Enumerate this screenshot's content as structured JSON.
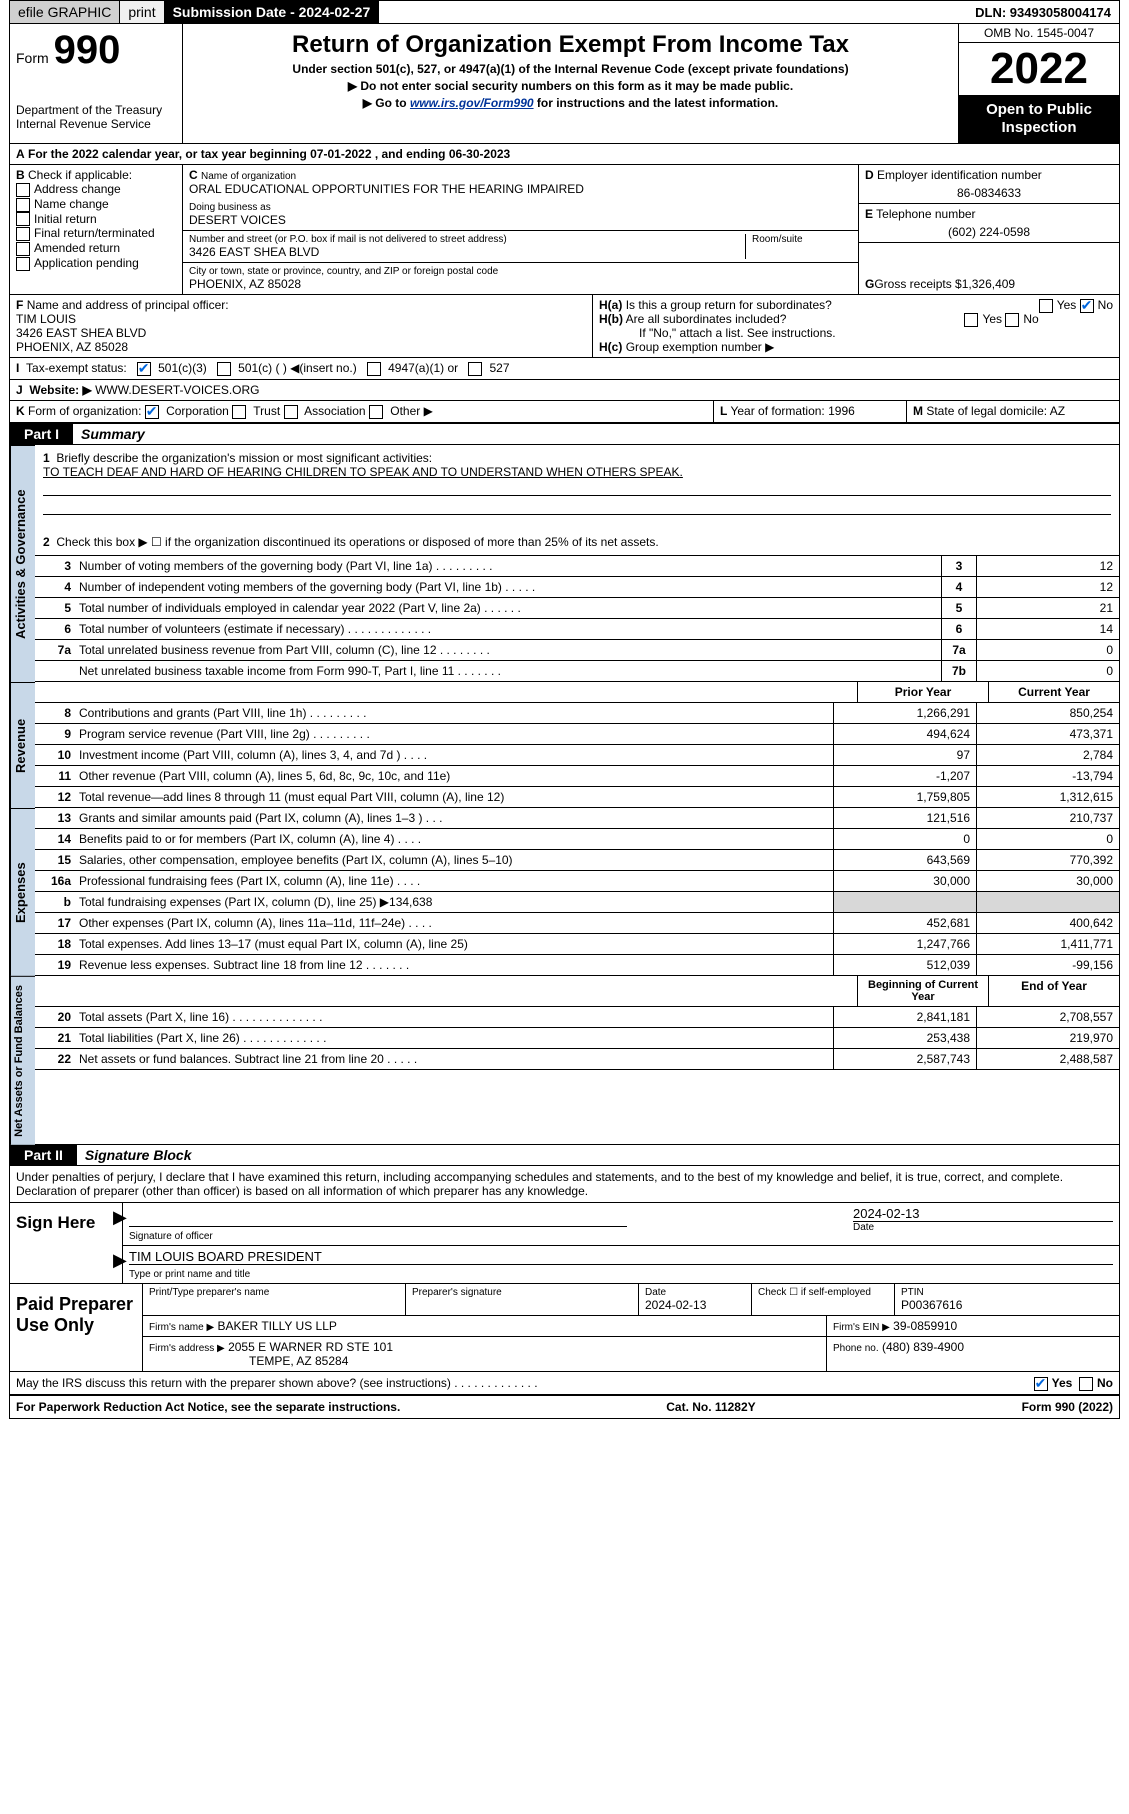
{
  "topbar": {
    "efile": "efile GRAPHIC",
    "print": "print",
    "sub_label": "Submission Date - 2024-02-27",
    "dln": "DLN: 93493058004174"
  },
  "header": {
    "form_label": "Form",
    "form_num": "990",
    "dept1": "Department of the Treasury",
    "dept2": "Internal Revenue Service",
    "title": "Return of Organization Exempt From Income Tax",
    "sub1": "Under section 501(c), 527, or 4947(a)(1) of the Internal Revenue Code (except private foundations)",
    "instr1": "Do not enter social security numbers on this form as it may be made public.",
    "instr2_pre": "Go to ",
    "instr2_link": "www.irs.gov/Form990",
    "instr2_post": " for instructions and the latest information.",
    "omb": "OMB No. 1545-0047",
    "year": "2022",
    "inspect": "Open to Public Inspection"
  },
  "section_a": {
    "line": "For the 2022 calendar year, or tax year beginning 07-01-2022    , and ending 06-30-2023"
  },
  "section_b": {
    "title": "Check if applicable:",
    "opts": [
      "Address change",
      "Name change",
      "Initial return",
      "Final return/terminated",
      "Amended return",
      "Application pending"
    ]
  },
  "section_c": {
    "name_label": "Name of organization",
    "name": "ORAL EDUCATIONAL OPPORTUNITIES FOR THE HEARING IMPAIRED",
    "dba_label": "Doing business as",
    "dba": "DESERT VOICES",
    "addr_label": "Number and street (or P.O. box if mail is not delivered to street address)",
    "room_label": "Room/suite",
    "addr": "3426 EAST SHEA BLVD",
    "city_label": "City or town, state or province, country, and ZIP or foreign postal code",
    "city": "PHOENIX, AZ  85028"
  },
  "section_d": {
    "label": "Employer identification number",
    "ein": "86-0834633"
  },
  "section_e": {
    "label": "Telephone number",
    "phone": "(602) 224-0598"
  },
  "section_g": {
    "label": "Gross receipts $",
    "amount": "1,326,409"
  },
  "section_f": {
    "label": "Name and address of principal officer:",
    "name": "TIM LOUIS",
    "addr1": "3426 EAST SHEA BLVD",
    "addr2": "PHOENIX, AZ  85028"
  },
  "section_h": {
    "a": "Is this a group return for subordinates?",
    "b": "Are all subordinates included?",
    "b_note": "If \"No,\" attach a list. See instructions.",
    "c": "Group exemption number ▶"
  },
  "section_i": {
    "label": "Tax-exempt status:",
    "opt1": "501(c)(3)",
    "opt2": "501(c) (  ) ◀(insert no.)",
    "opt3": "4947(a)(1) or",
    "opt4": "527"
  },
  "section_j": {
    "label": "Website: ▶",
    "url": "WWW.DESERT-VOICES.ORG"
  },
  "section_k": {
    "label": "Form of organization:",
    "opts": [
      "Corporation",
      "Trust",
      "Association",
      "Other ▶"
    ]
  },
  "section_l": {
    "label": "Year of formation:",
    "year": "1996"
  },
  "section_m": {
    "label": "State of legal domicile:",
    "state": "AZ"
  },
  "part1": {
    "label": "Part I",
    "title": "Summary",
    "line1_label": "Briefly describe the organization's mission or most significant activities:",
    "line1_text": "TO TEACH DEAF AND HARD OF HEARING CHILDREN TO SPEAK AND TO UNDERSTAND WHEN OTHERS SPEAK.",
    "line2": "Check this box ▶ ☐  if the organization discontinued its operations or disposed of more than 25% of its net assets.",
    "vlabels": {
      "gov": "Activities & Governance",
      "rev": "Revenue",
      "exp": "Expenses",
      "net": "Net Assets or Fund Balances"
    },
    "gov_lines": [
      {
        "num": "3",
        "desc": "Number of voting members of the governing body (Part VI, line 1a)   .    .    .    .    .    .    .    .    .",
        "box": "3",
        "val": "12"
      },
      {
        "num": "4",
        "desc": "Number of independent voting members of the governing body (Part VI, line 1b)   .    .    .    .    .",
        "box": "4",
        "val": "12"
      },
      {
        "num": "5",
        "desc": "Total number of individuals employed in calendar year 2022 (Part V, line 2a)   .    .    .    .    .    .",
        "box": "5",
        "val": "21"
      },
      {
        "num": "6",
        "desc": "Total number of volunteers (estimate if necessary)   .    .    .    .    .    .    .    .    .    .    .    .    .",
        "box": "6",
        "val": "14"
      },
      {
        "num": "7a",
        "desc": "Total unrelated business revenue from Part VIII, column (C), line 12   .    .    .    .    .    .    .    .",
        "box": "7a",
        "val": "0"
      },
      {
        "num": "",
        "desc": "Net unrelated business taxable income from Form 990-T, Part I, line 11   .    .    .    .    .    .    .",
        "box": "7b",
        "val": "0"
      }
    ],
    "col_hdr_prior": "Prior Year",
    "col_hdr_curr": "Current Year",
    "rev_lines": [
      {
        "num": "8",
        "desc": "Contributions and grants (Part VIII, line 1h)   .    .    .    .    .    .    .    .    .",
        "prior": "1,266,291",
        "curr": "850,254"
      },
      {
        "num": "9",
        "desc": "Program service revenue (Part VIII, line 2g)   .    .    .    .    .    .    .    .    .",
        "prior": "494,624",
        "curr": "473,371"
      },
      {
        "num": "10",
        "desc": "Investment income (Part VIII, column (A), lines 3, 4, and 7d )   .    .    .    .",
        "prior": "97",
        "curr": "2,784"
      },
      {
        "num": "11",
        "desc": "Other revenue (Part VIII, column (A), lines 5, 6d, 8c, 9c, 10c, and 11e)",
        "prior": "-1,207",
        "curr": "-13,794"
      },
      {
        "num": "12",
        "desc": "Total revenue—add lines 8 through 11 (must equal Part VIII, column (A), line 12)",
        "prior": "1,759,805",
        "curr": "1,312,615"
      }
    ],
    "exp_lines": [
      {
        "num": "13",
        "desc": "Grants and similar amounts paid (Part IX, column (A), lines 1–3 )   .    .    .",
        "prior": "121,516",
        "curr": "210,737"
      },
      {
        "num": "14",
        "desc": "Benefits paid to or for members (Part IX, column (A), line 4)   .    .    .    .",
        "prior": "0",
        "curr": "0"
      },
      {
        "num": "15",
        "desc": "Salaries, other compensation, employee benefits (Part IX, column (A), lines 5–10)",
        "prior": "643,569",
        "curr": "770,392"
      },
      {
        "num": "16a",
        "desc": "Professional fundraising fees (Part IX, column (A), line 11e)   .    .    .    .",
        "prior": "30,000",
        "curr": "30,000"
      },
      {
        "num": "b",
        "desc": "Total fundraising expenses (Part IX, column (D), line 25) ▶134,638",
        "prior": "",
        "curr": "",
        "gray": true
      },
      {
        "num": "17",
        "desc": "Other expenses (Part IX, column (A), lines 11a–11d, 11f–24e)   .    .    .    .",
        "prior": "452,681",
        "curr": "400,642"
      },
      {
        "num": "18",
        "desc": "Total expenses. Add lines 13–17 (must equal Part IX, column (A), line 25)",
        "prior": "1,247,766",
        "curr": "1,411,771"
      },
      {
        "num": "19",
        "desc": "Revenue less expenses. Subtract line 18 from line 12   .    .    .    .    .    .    .",
        "prior": "512,039",
        "curr": "-99,156"
      }
    ],
    "net_hdr_begin": "Beginning of Current Year",
    "net_hdr_end": "End of Year",
    "net_lines": [
      {
        "num": "20",
        "desc": "Total assets (Part X, line 16)   .    .    .    .    .    .    .    .    .    .    .    .    .    .",
        "prior": "2,841,181",
        "curr": "2,708,557"
      },
      {
        "num": "21",
        "desc": "Total liabilities (Part X, line 26)   .    .    .    .    .    .    .    .    .    .    .    .    .",
        "prior": "253,438",
        "curr": "219,970"
      },
      {
        "num": "22",
        "desc": "Net assets or fund balances. Subtract line 21 from line 20   .    .    .    .    .",
        "prior": "2,587,743",
        "curr": "2,488,587"
      }
    ]
  },
  "part2": {
    "label": "Part II",
    "title": "Signature Block",
    "declaration": "Under penalties of perjury, I declare that I have examined this return, including accompanying schedules and statements, and to the best of my knowledge and belief, it is true, correct, and complete. Declaration of preparer (other than officer) is based on all information of which preparer has any knowledge.",
    "sign_here": "Sign Here",
    "sig_of_officer": "Signature of officer",
    "date_label": "Date",
    "sig_date": "2024-02-13",
    "officer_name": "TIM LOUIS  BOARD PRESIDENT",
    "officer_type_label": "Type or print name and title",
    "paid_label": "Paid Preparer Use Only",
    "prep_name_label": "Print/Type preparer's name",
    "prep_sig_label": "Preparer's signature",
    "prep_date_label0": "Date",
    "prep_date": "2024-02-13",
    "check_if": "Check ☐  if self-employed",
    "ptin_label": "PTIN",
    "ptin": "P00367616",
    "firm_name_label": "Firm's name     ▶",
    "firm_name": "BAKER TILLY US LLP",
    "firm_ein_label": "Firm's EIN ▶",
    "firm_ein": "39-0859910",
    "firm_addr_label": "Firm's address ▶",
    "firm_addr1": "2055 E WARNER RD STE 101",
    "firm_addr2": "TEMPE, AZ  85284",
    "phone_label": "Phone no.",
    "phone": "(480) 839-4900",
    "discuss": "May the IRS discuss this return with the preparer shown above? (see instructions)   .    .    .    .    .    .    .    .    .    .    .    .    .",
    "yes": "Yes",
    "no": "No"
  },
  "footer": {
    "left": "For Paperwork Reduction Act Notice, see the separate instructions.",
    "center": "Cat. No. 11282Y",
    "right": "Form 990 (2022)"
  }
}
